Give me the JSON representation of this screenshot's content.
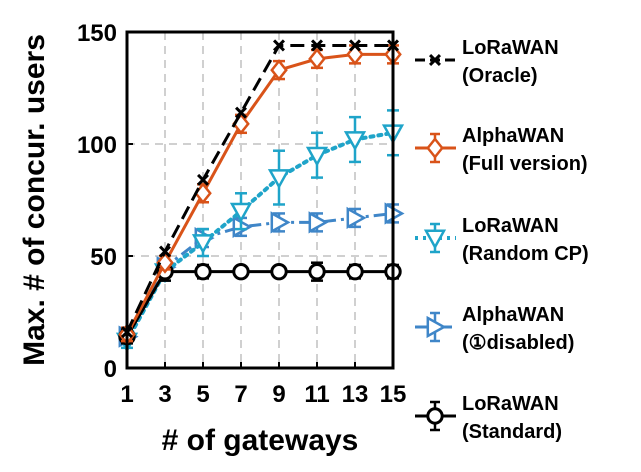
{
  "chart_data": {
    "type": "line",
    "xlabel": "# of gateways",
    "ylabel": "Max. # of concur. users",
    "xlim": [
      1,
      15
    ],
    "ylim": [
      0,
      150
    ],
    "x_ticks": [
      1,
      3,
      5,
      7,
      9,
      11,
      13,
      15
    ],
    "x_tick_labels": [
      "1",
      "3",
      "5",
      "7",
      "9",
      "11",
      "13",
      "15"
    ],
    "y_ticks": [
      0,
      50,
      100,
      150
    ],
    "y_tick_labels": [
      "0",
      "50",
      "100",
      "150"
    ],
    "grid": true,
    "legend_position": "right, outside plot area",
    "series": [
      {
        "key": "oracle",
        "legend_lines": [
          "LoRaWAN",
          "(Oracle)"
        ],
        "color": "#000000",
        "line_style": "dashed",
        "marker": "x",
        "x": [
          1,
          3,
          5,
          7,
          9,
          11,
          13,
          15
        ],
        "y": [
          16,
          52,
          84,
          114,
          144,
          144,
          144,
          144
        ],
        "err": []
      },
      {
        "key": "alphawan_full",
        "legend_lines": [
          "AlphaWAN",
          "(Full version)"
        ],
        "color": "#d95319",
        "line_style": "solid",
        "marker": "diamond",
        "x": [
          1,
          3,
          5,
          7,
          9,
          11,
          13,
          15
        ],
        "y": [
          15,
          47,
          78,
          109,
          133,
          138,
          140,
          140
        ],
        "err": [
          3,
          3,
          4,
          4,
          4,
          4,
          4,
          4
        ]
      },
      {
        "key": "lorawan_random_cp",
        "legend_lines": [
          "LoRaWAN",
          "(Random CP)"
        ],
        "color": "#1fa4c9",
        "line_style": "dotted",
        "marker": "triangle-down",
        "x": [
          1,
          3,
          5,
          7,
          9,
          11,
          13,
          15
        ],
        "y": [
          12,
          43,
          56,
          70,
          85,
          95,
          102,
          105
        ],
        "err": [
          3,
          4,
          6,
          8,
          12,
          10,
          10,
          10
        ]
      },
      {
        "key": "alphawan_disabled",
        "legend_lines": [
          "AlphaWAN",
          "(①disabled)"
        ],
        "color": "#3f86c8",
        "line_style": "dashdot",
        "marker": "triangle-right",
        "x": [
          1,
          3,
          5,
          7,
          9,
          11,
          13,
          15
        ],
        "y": [
          14,
          45,
          58,
          63,
          65,
          65,
          67,
          69
        ],
        "err": [
          3,
          3,
          4,
          4,
          4,
          4,
          4,
          4
        ]
      },
      {
        "key": "lorawan_standard",
        "legend_lines": [
          "LoRaWAN",
          "(Standard)"
        ],
        "color": "#000000",
        "line_style": "solid",
        "marker": "circle",
        "x": [
          1,
          3,
          5,
          7,
          9,
          11,
          13,
          15
        ],
        "y": [
          14,
          43,
          43,
          43,
          43,
          43,
          43,
          43
        ],
        "err": [
          3,
          4,
          3,
          2,
          2,
          4,
          3,
          3
        ]
      }
    ]
  }
}
